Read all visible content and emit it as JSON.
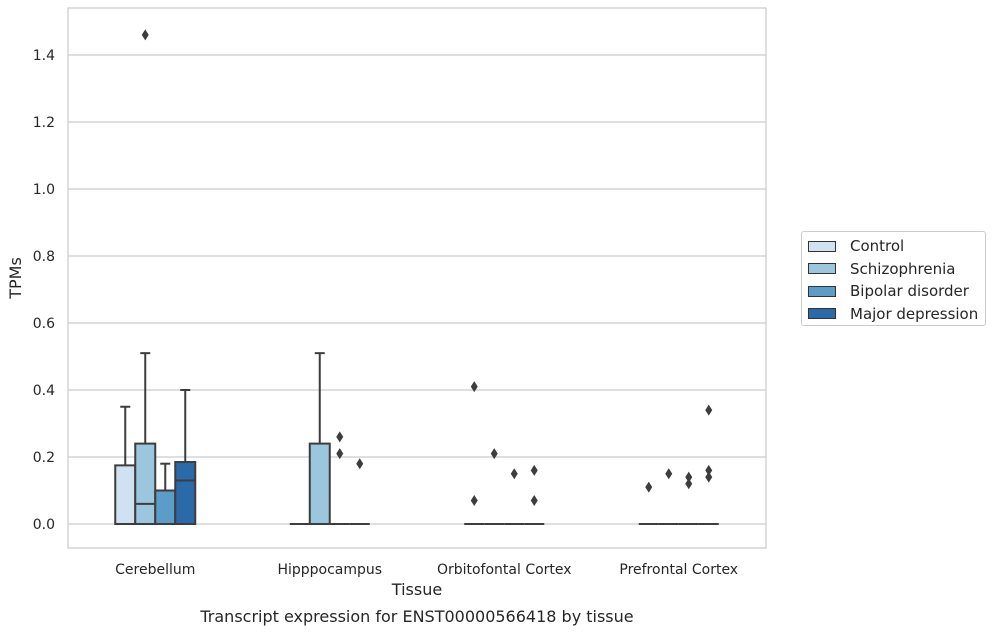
{
  "chart_data": {
    "type": "box",
    "title": "Transcript expression for ENST00000566418 by tissue",
    "xlabel": "Tissue",
    "ylabel": "TPMs",
    "ylim": [
      -0.07,
      1.53
    ],
    "yticks": [
      "0.0",
      "0.2",
      "0.4",
      "0.6",
      "0.8",
      "1.0",
      "1.2",
      "1.4"
    ],
    "categories": [
      "Cerebellum",
      "Hipppocampus",
      "Orbitofontal Cortex",
      "Prefrontal Cortex"
    ],
    "grid": true,
    "legend_position": "right",
    "series": [
      {
        "name": "Control",
        "color": "#d0e1f1",
        "boxes": [
          {
            "whisker_low": 0,
            "q1": 0,
            "median": 0,
            "q3": 0.175,
            "whisker_high": 0.35,
            "outliers": []
          },
          {
            "whisker_low": 0,
            "q1": 0,
            "median": 0,
            "q3": 0,
            "whisker_high": 0,
            "outliers": []
          },
          {
            "whisker_low": 0,
            "q1": 0,
            "median": 0,
            "q3": 0,
            "whisker_high": 0,
            "outliers": [
              0.41,
              0.07
            ]
          },
          {
            "whisker_low": 0,
            "q1": 0,
            "median": 0,
            "q3": 0,
            "whisker_high": 0,
            "outliers": [
              0.11
            ]
          }
        ]
      },
      {
        "name": "Schizophrenia",
        "color": "#9cc6dd",
        "boxes": [
          {
            "whisker_low": 0,
            "q1": 0,
            "median": 0.06,
            "q3": 0.24,
            "whisker_high": 0.51,
            "outliers": [
              1.46
            ]
          },
          {
            "whisker_low": 0,
            "q1": 0,
            "median": 0,
            "q3": 0.24,
            "whisker_high": 0.51,
            "outliers": []
          },
          {
            "whisker_low": 0,
            "q1": 0,
            "median": 0,
            "q3": 0,
            "whisker_high": 0,
            "outliers": [
              0.21
            ]
          },
          {
            "whisker_low": 0,
            "q1": 0,
            "median": 0,
            "q3": 0,
            "whisker_high": 0,
            "outliers": [
              0.15
            ]
          }
        ]
      },
      {
        "name": "Bipolar disorder",
        "color": "#5b9cc9",
        "boxes": [
          {
            "whisker_low": 0,
            "q1": 0,
            "median": 0,
            "q3": 0.1,
            "whisker_high": 0.18,
            "outliers": []
          },
          {
            "whisker_low": 0,
            "q1": 0,
            "median": 0,
            "q3": 0,
            "whisker_high": 0,
            "outliers": [
              0.26,
              0.21
            ]
          },
          {
            "whisker_low": 0,
            "q1": 0,
            "median": 0,
            "q3": 0,
            "whisker_high": 0,
            "outliers": [
              0.15
            ]
          },
          {
            "whisker_low": 0,
            "q1": 0,
            "median": 0,
            "q3": 0,
            "whisker_high": 0,
            "outliers": [
              0.14,
              0.12
            ]
          }
        ]
      },
      {
        "name": "Major depression",
        "color": "#2a6aa8",
        "boxes": [
          {
            "whisker_low": 0,
            "q1": 0,
            "median": 0.13,
            "q3": 0.185,
            "whisker_high": 0.4,
            "outliers": []
          },
          {
            "whisker_low": 0,
            "q1": 0,
            "median": 0,
            "q3": 0,
            "whisker_high": 0,
            "outliers": [
              0.18
            ]
          },
          {
            "whisker_low": 0,
            "q1": 0,
            "median": 0,
            "q3": 0,
            "whisker_high": 0,
            "outliers": [
              0.16,
              0.07
            ]
          },
          {
            "whisker_low": 0,
            "q1": 0,
            "median": 0,
            "q3": 0,
            "whisker_high": 0,
            "outliers": [
              0.34,
              0.16,
              0.14
            ]
          }
        ]
      }
    ]
  }
}
